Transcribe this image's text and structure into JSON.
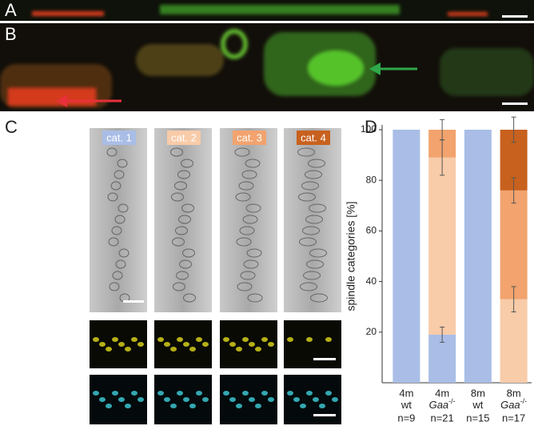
{
  "panels": {
    "a": "A",
    "b": "B",
    "c": "C",
    "d": "D"
  },
  "chart_data": {
    "type": "stacked_bar",
    "y_label": "spindle categories [%]",
    "categories": [
      {
        "age": "4m",
        "genotype": "wt",
        "n": "n=9"
      },
      {
        "age": "4m",
        "genotype": "Gaa",
        "genotype_sup": "-/-",
        "n": "n=21"
      },
      {
        "age": "8m",
        "genotype": "wt",
        "n": "n=15"
      },
      {
        "age": "8m",
        "genotype": "Gaa",
        "genotype_sup": "-/-",
        "n": "n=17"
      }
    ],
    "series": [
      {
        "name": "cat. 1",
        "color": "#a9bde6",
        "values": [
          100,
          19,
          100,
          null
        ],
        "errors": [
          null,
          3,
          null,
          null
        ]
      },
      {
        "name": "cat. 2",
        "color": "#f8cba9",
        "values": [
          null,
          70,
          null,
          33
        ],
        "errors": [
          null,
          7,
          null,
          5
        ]
      },
      {
        "name": "cat. 3",
        "color": "#f2a36e",
        "values": [
          null,
          11,
          null,
          43
        ],
        "errors": [
          null,
          4,
          null,
          5
        ]
      },
      {
        "name": "cat. 4",
        "color": "#c8611e",
        "values": [
          null,
          null,
          null,
          24
        ],
        "errors": [
          null,
          null,
          null,
          5
        ]
      }
    ],
    "ylim": [
      0,
      100
    ],
    "yticks": [
      20,
      40,
      60,
      80,
      100
    ]
  }
}
